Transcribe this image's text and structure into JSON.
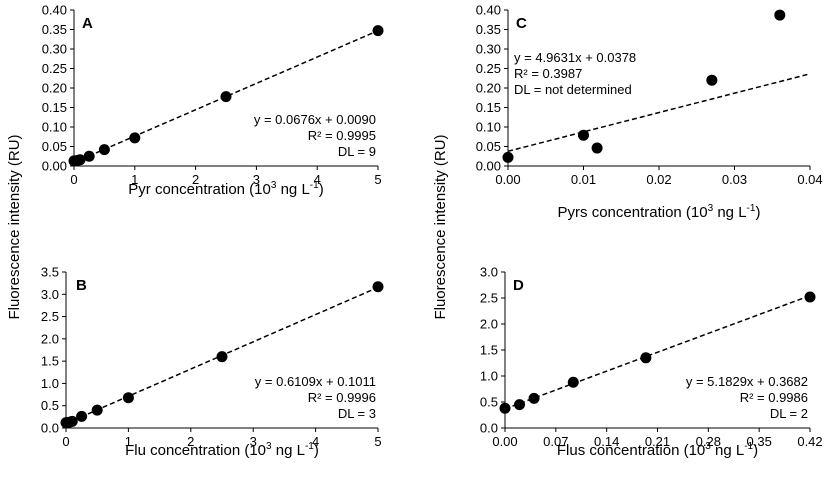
{
  "figure": {
    "ylabel_left": "Fluorescence intensity (RU)",
    "ylabel_right": "Fluorescence intensity (RU)"
  },
  "chart_data": [
    {
      "panel": "A",
      "type": "scatter",
      "xlabel": "Pyr concentration (10",
      "xlabel_sup": "3",
      "xlabel_tail": " ng L",
      "xlabel_sup2": "-1",
      "xlabel_end": ")",
      "xlim": [
        0,
        5
      ],
      "xticks": [
        "0",
        "1",
        "2",
        "3",
        "4",
        "5"
      ],
      "xtick_values": [
        0,
        1,
        2,
        3,
        4,
        5
      ],
      "ylim": [
        0,
        0.4
      ],
      "yticks": [
        "0.00",
        "0.05",
        "0.10",
        "0.15",
        "0.20",
        "0.25",
        "0.30",
        "0.35",
        "0.40"
      ],
      "ytick_values": [
        0,
        0.05,
        0.1,
        0.15,
        0.2,
        0.25,
        0.3,
        0.35,
        0.4
      ],
      "x": [
        0,
        0.05,
        0.1,
        0.25,
        0.5,
        1,
        2.5,
        5
      ],
      "y": [
        0.013,
        0.014,
        0.016,
        0.025,
        0.042,
        0.072,
        0.178,
        0.347
      ],
      "trend": {
        "slope": 0.0676,
        "intercept": 0.009
      },
      "annotations": [
        "y = 0.0676x + 0.0090",
        "R² = 0.9995",
        "DL = 9"
      ],
      "annot_align": "right",
      "annot_pos": "lower-right"
    },
    {
      "panel": "B",
      "type": "scatter",
      "xlabel": "Flu concentration (10",
      "xlabel_sup": "3",
      "xlabel_tail": " ng L",
      "xlabel_sup2": "-1",
      "xlabel_end": ")",
      "xlim": [
        0,
        5
      ],
      "xticks": [
        "0",
        "1",
        "2",
        "3",
        "4",
        "5"
      ],
      "xtick_values": [
        0,
        1,
        2,
        3,
        4,
        5
      ],
      "ylim": [
        0,
        3.5
      ],
      "yticks": [
        "0.0",
        "0.5",
        "1.0",
        "1.5",
        "2.0",
        "2.5",
        "3.0",
        "3.5"
      ],
      "ytick_values": [
        0,
        0.5,
        1,
        1.5,
        2,
        2.5,
        3,
        3.5
      ],
      "x": [
        0,
        0.05,
        0.1,
        0.25,
        0.5,
        1,
        2.5,
        5
      ],
      "y": [
        0.12,
        0.13,
        0.15,
        0.26,
        0.4,
        0.68,
        1.6,
        3.17
      ],
      "trend": {
        "slope": 0.6109,
        "intercept": 0.1011
      },
      "annotations": [
        "y = 0.6109x + 0.1011",
        "R² = 0.9996",
        "DL = 3"
      ],
      "annot_align": "right",
      "annot_pos": "lower-right"
    },
    {
      "panel": "C",
      "type": "scatter",
      "xlabel": "Pyrs concentration (10",
      "xlabel_sup": "3",
      "xlabel_tail": " ng L",
      "xlabel_sup2": "-1",
      "xlabel_end": ")",
      "xlim": [
        0,
        0.04
      ],
      "xticks": [
        "0.00",
        "0.01",
        "0.02",
        "0.03",
        "0.04"
      ],
      "xtick_values": [
        0,
        0.01,
        0.02,
        0.03,
        0.04
      ],
      "ylim": [
        0,
        0.4
      ],
      "yticks": [
        "0.00",
        "0.05",
        "0.10",
        "0.15",
        "0.20",
        "0.25",
        "0.30",
        "0.35",
        "0.40"
      ],
      "ytick_values": [
        0,
        0.05,
        0.1,
        0.15,
        0.2,
        0.25,
        0.3,
        0.35,
        0.4
      ],
      "x": [
        0,
        0.01,
        0.0118,
        0.027,
        0.036
      ],
      "y": [
        0.022,
        0.079,
        0.046,
        0.22,
        0.387
      ],
      "trend": {
        "slope": 4.9631,
        "intercept": 0.0378
      },
      "annotations": [
        "y = 4.9631x + 0.0378",
        "R² = 0.3987",
        "DL = not determined"
      ],
      "annot_align": "left",
      "annot_pos": "upper-left"
    },
    {
      "panel": "D",
      "type": "scatter",
      "xlabel": "Flus concentration (10",
      "xlabel_sup": "3",
      "xlabel_tail": " ng L",
      "xlabel_sup2": "-1",
      "xlabel_end": ")",
      "xlim": [
        0,
        0.42
      ],
      "xticks": [
        "0.00",
        "0.07",
        "0.14",
        "0.21",
        "0.28",
        "0.35",
        "0.42"
      ],
      "xtick_values": [
        0,
        0.07,
        0.14,
        0.21,
        0.28,
        0.35,
        0.42
      ],
      "ylim": [
        0,
        3.0
      ],
      "yticks": [
        "0.0",
        "0.5",
        "1.0",
        "1.5",
        "2.0",
        "2.5",
        "3.0"
      ],
      "ytick_values": [
        0,
        0.5,
        1,
        1.5,
        2,
        2.5,
        3
      ],
      "x": [
        0,
        0.02,
        0.04,
        0.094,
        0.194,
        0.42
      ],
      "y": [
        0.38,
        0.45,
        0.57,
        0.88,
        1.35,
        2.52
      ],
      "trend": {
        "slope": 5.1829,
        "intercept": 0.3682
      },
      "annotations": [
        "y = 5.1829x + 0.3682",
        "R² = 0.9986",
        "DL = 2"
      ],
      "annot_align": "right",
      "annot_pos": "lower-right"
    }
  ]
}
